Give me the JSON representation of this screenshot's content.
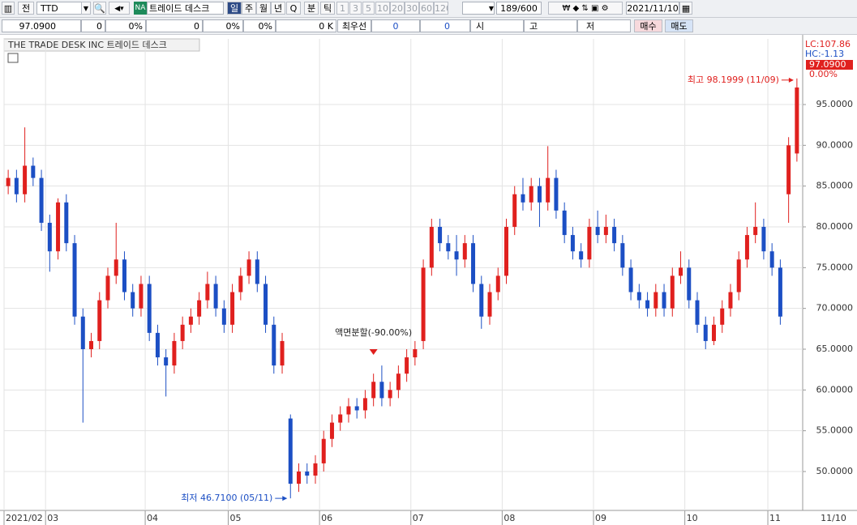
{
  "toolbar": {
    "market": "전",
    "code": "TTD",
    "badge": "NA",
    "name": "트레이드 데스크",
    "periods": [
      "일",
      "주",
      "월",
      "년",
      "Q",
      "분",
      "틱"
    ],
    "intervals": [
      "1",
      "3",
      "5",
      "10",
      "20",
      "30",
      "60",
      "120"
    ],
    "count": "189/600",
    "date": "2021/11/10"
  },
  "quote_bar": {
    "price": "97.0900",
    "cells": [
      "0",
      "0%",
      "0",
      "0%",
      "0%",
      "0 K"
    ],
    "best_label": "최우선",
    "best": [
      "0",
      "0"
    ],
    "ohl": [
      "시",
      "고",
      "저"
    ],
    "buy": "매수",
    "sell": "매도"
  },
  "chart_data": {
    "type": "candlestick",
    "title": "THE TRADE DESK INC  트레이드 데스크",
    "categories": [
      "2021/02",
      null,
      null,
      null,
      null,
      "03",
      null,
      null,
      null,
      null,
      null,
      null,
      null,
      null,
      null,
      null,
      null,
      "04",
      null,
      null,
      null,
      null,
      null,
      null,
      null,
      null,
      null,
      "05",
      null,
      null,
      null,
      null,
      null,
      null,
      null,
      null,
      null,
      null,
      "06",
      null,
      null,
      null,
      null,
      null,
      null,
      null,
      null,
      null,
      null,
      "07",
      null,
      null,
      null,
      null,
      null,
      null,
      null,
      null,
      null,
      null,
      "08",
      null,
      null,
      null,
      null,
      null,
      null,
      null,
      null,
      null,
      null,
      "09",
      null,
      null,
      null,
      null,
      null,
      null,
      null,
      null,
      null,
      null,
      "10",
      null,
      null,
      null,
      null,
      null,
      null,
      null,
      null,
      null,
      "11",
      null,
      null,
      null
    ],
    "last_date": "11/10",
    "open": [
      85,
      86,
      84,
      87.5,
      86,
      80.5,
      77,
      83,
      78,
      69,
      65,
      66,
      71,
      74,
      76,
      72,
      70,
      73,
      67,
      64,
      63,
      66,
      68,
      69,
      71,
      73,
      70,
      68,
      72,
      74,
      76,
      73,
      68,
      63,
      56.5,
      48.5,
      50,
      49.5,
      51,
      54,
      56,
      57,
      58,
      57.5,
      59,
      61,
      59,
      60,
      62,
      64,
      66,
      75,
      80,
      78,
      77,
      76,
      78,
      73,
      69,
      72,
      74,
      80,
      84,
      83,
      85,
      83,
      86,
      82,
      79,
      77,
      76,
      80,
      79,
      80,
      78,
      75,
      72,
      71,
      70,
      72,
      70,
      74,
      75,
      71,
      68,
      66,
      68,
      70,
      72,
      76,
      79,
      80,
      77,
      75,
      84,
      89
    ],
    "high": [
      87,
      87,
      92.2,
      88.5,
      87,
      81.5,
      83.5,
      84,
      79,
      70,
      67,
      72,
      75,
      80.5,
      77,
      73,
      74,
      74,
      68,
      65,
      67,
      69,
      70,
      72,
      74.5,
      74,
      71,
      73,
      75,
      77,
      77,
      74,
      69,
      67,
      57,
      51,
      51,
      52,
      55,
      57,
      58,
      59,
      59,
      60,
      62,
      63,
      61,
      63,
      65,
      66,
      76,
      81,
      81,
      79,
      79,
      79,
      79,
      74,
      73,
      75,
      81,
      85,
      86,
      86,
      86,
      89.9,
      87,
      83,
      80,
      78,
      81,
      82,
      81.5,
      81,
      79,
      76,
      73,
      72,
      73,
      73,
      75,
      77,
      76,
      72,
      69,
      69,
      71,
      73,
      77,
      80,
      83,
      81,
      78,
      76,
      91,
      98.1999
    ],
    "low": [
      84,
      83,
      83,
      85,
      79.5,
      74.5,
      76,
      77,
      68,
      56,
      64,
      65,
      70,
      73,
      71,
      69,
      69,
      66,
      63,
      59.2,
      62,
      65,
      67,
      68,
      70,
      69,
      67,
      67,
      71,
      73,
      72,
      67,
      62,
      62,
      46.71,
      47.5,
      48.5,
      48.5,
      50,
      53,
      55,
      56,
      56.5,
      56.5,
      58,
      58,
      58,
      59,
      61,
      63,
      65,
      74,
      77,
      76,
      74,
      75,
      72,
      67.5,
      68,
      71,
      73,
      79,
      82,
      82,
      80,
      82,
      81,
      78,
      76,
      75,
      75,
      78,
      78,
      77,
      74,
      71,
      70,
      69,
      69,
      69,
      69,
      73,
      70,
      67,
      65,
      65.5,
      67,
      69,
      71,
      75,
      78,
      76,
      74,
      68,
      80.5,
      88
    ],
    "close": [
      86,
      84,
      87.5,
      86,
      80.5,
      77,
      83,
      78,
      69,
      65,
      66,
      71,
      74,
      76,
      72,
      70,
      73,
      67,
      64,
      63,
      66,
      68,
      69,
      71,
      73,
      70,
      68,
      72,
      74,
      76,
      73,
      68,
      63,
      66,
      48.5,
      50,
      49.5,
      51,
      54,
      56,
      57,
      58,
      57.5,
      59,
      61,
      59,
      60,
      62,
      64,
      65,
      75,
      80,
      78,
      77,
      76,
      78,
      73,
      69,
      72,
      74,
      80,
      84,
      83,
      85,
      83,
      86,
      82,
      79,
      77,
      76,
      80,
      79,
      80,
      78,
      75,
      72,
      71,
      70,
      72,
      70,
      74,
      75,
      71,
      68,
      66,
      68,
      70,
      72,
      76,
      79,
      80,
      77,
      75,
      69,
      90,
      97.09
    ],
    "up_color": "#e0201e",
    "down_color": "#1c4fc4",
    "ylim": [
      45.23,
      103.05
    ],
    "yticks": [
      {
        "value": 50,
        "label": "50.0000"
      },
      {
        "value": 55,
        "label": "55.0000"
      },
      {
        "value": 60,
        "label": "60.0000"
      },
      {
        "value": 65,
        "label": "65.0000"
      },
      {
        "value": 70,
        "label": "70.0000"
      },
      {
        "value": 75,
        "label": "75.0000"
      },
      {
        "value": 80,
        "label": "80.0000"
      },
      {
        "value": 85,
        "label": "85.0000"
      },
      {
        "value": 90,
        "label": "90.0000"
      },
      {
        "value": 95,
        "label": "95.0000"
      }
    ],
    "grid": true,
    "annotations": {
      "high": "최고 98.1999 (11/09)",
      "low": "최저 46.7100 (05/11)",
      "split": "액면분할(-90.00%)"
    },
    "side_labels": {
      "lc": "LC:107.86",
      "hc": "HC:-1.13",
      "price": "97.0900",
      "change": "0.00%"
    }
  }
}
